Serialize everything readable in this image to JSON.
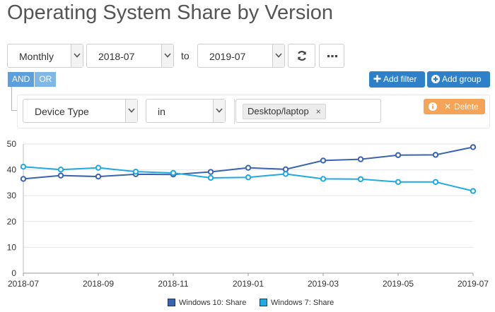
{
  "page": {
    "title": "Operating System Share by Version"
  },
  "controls": {
    "interval": "Monthly",
    "from_date": "2018-07",
    "to_label": "to",
    "to_date": "2019-07",
    "refresh_icon": "refresh-icon",
    "more_icon": "ellipsis-icon"
  },
  "filter": {
    "and_label": "AND",
    "or_label": "OR",
    "active_condition": "AND",
    "add_filter_label": "Add filter",
    "add_group_label": "Add group",
    "field": "Device Type",
    "operator": "in",
    "value_tag": "Desktop/laptop",
    "tag_remove": "×",
    "delete_label": "Delete",
    "delete_info_icon": "info-icon"
  },
  "colors": {
    "primary": "#2e80c9",
    "delete": "#f5a356",
    "windows10": "#3b63b2",
    "windows7": "#21a9e3"
  },
  "chart_data": {
    "type": "line",
    "x": [
      "2018-07",
      "2018-08",
      "2018-09",
      "2018-10",
      "2018-11",
      "2018-12",
      "2019-01",
      "2019-02",
      "2019-03",
      "2019-04",
      "2019-05",
      "2019-06",
      "2019-07"
    ],
    "x_tick_labels": [
      "2018-07",
      "2018-09",
      "2018-11",
      "2019-01",
      "2019-03",
      "2019-05",
      "2019-07"
    ],
    "y_ticks": [
      0,
      10,
      20,
      30,
      40,
      50
    ],
    "ylim": [
      0,
      50
    ],
    "grid": true,
    "legend_position": "bottom",
    "series": [
      {
        "name": "Windows 10: Share",
        "color": "#3b63b2",
        "values": [
          36.5,
          37.8,
          37.4,
          38.3,
          38.2,
          39.2,
          40.8,
          40.2,
          43.6,
          44.1,
          45.7,
          45.8,
          48.8
        ]
      },
      {
        "name": "Windows 7: Share",
        "color": "#21a9e3",
        "values": [
          41.2,
          40.1,
          40.8,
          39.3,
          38.8,
          36.9,
          37.1,
          38.4,
          36.5,
          36.4,
          35.3,
          35.3,
          31.8
        ]
      }
    ]
  }
}
